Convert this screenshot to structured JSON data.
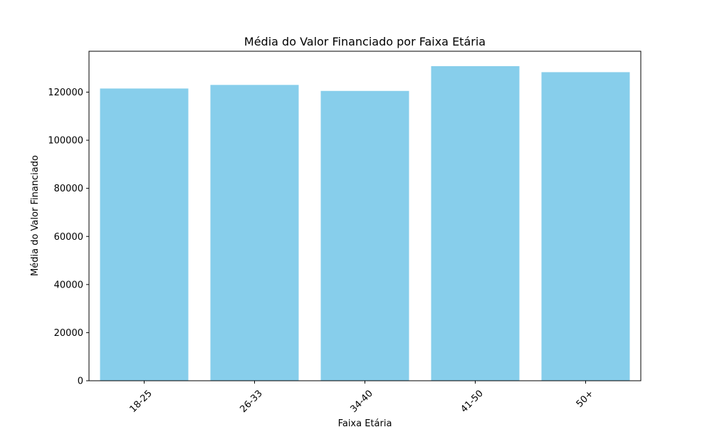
{
  "chart_data": {
    "type": "bar",
    "title": "Média do Valor Financiado por Faixa Etária",
    "xlabel": "Faixa Etária",
    "ylabel": "Média do Valor Financiado",
    "categories": [
      "18-25",
      "26-33",
      "34-40",
      "41-50",
      "50+"
    ],
    "values": [
      121500,
      123000,
      120500,
      130800,
      128300
    ],
    "ylim": [
      0,
      137000
    ],
    "yticks": [
      0,
      20000,
      40000,
      60000,
      80000,
      100000,
      120000
    ],
    "yticklabels": [
      "0",
      "20000",
      "40000",
      "60000",
      "80000",
      "100000",
      "120000"
    ],
    "bar_color": "#87ceeb",
    "grid": false,
    "x_tick_rotation_deg": 45
  }
}
